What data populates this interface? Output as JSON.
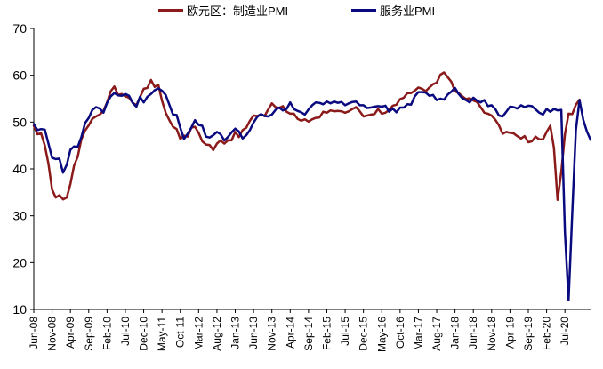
{
  "chart_data": {
    "type": "line",
    "title": "",
    "xlabel": "",
    "ylabel": "",
    "ylim": [
      10,
      70
    ],
    "yticks": [
      10,
      20,
      30,
      40,
      50,
      60,
      70
    ],
    "grid": false,
    "legend_position": "top",
    "x_start": "2008-06",
    "x_labels": [
      "Jun-08",
      "Nov-08",
      "Apr-09",
      "Sep-09",
      "Feb-10",
      "Jul-10",
      "Dec-10",
      "May-11",
      "Oct-11",
      "Mar-12",
      "Aug-12",
      "Jan-13",
      "Jun-13",
      "Nov-13",
      "Apr-14",
      "Sep-14",
      "Feb-15",
      "Jul-15",
      "Dec-15",
      "May-16",
      "Oct-16",
      "Mar-17",
      "Aug-17",
      "Jan-18",
      "Jun-18",
      "Nov-18",
      "Apr-19",
      "Sep-19",
      "Feb-20",
      "Jul-20"
    ],
    "series": [
      {
        "name": "欧元区：制造业PMI",
        "color": "#8B1A1A",
        "values": [
          49.2,
          47.4,
          47.6,
          45.0,
          41.1,
          35.6,
          33.9,
          34.4,
          33.5,
          33.9,
          36.8,
          40.7,
          42.6,
          46.3,
          48.2,
          49.3,
          50.7,
          51.2,
          51.6,
          52.4,
          54.2,
          56.6,
          57.6,
          55.8,
          56.0,
          55.5,
          55.2,
          54.1,
          53.6,
          55.3,
          57.1,
          57.3,
          59.0,
          57.5,
          58.0,
          54.6,
          52.0,
          50.4,
          49.0,
          48.5,
          46.4,
          47.1,
          46.9,
          48.8,
          49.0,
          47.7,
          45.9,
          45.2,
          45.1,
          44.0,
          45.4,
          46.1,
          45.4,
          46.1,
          46.1,
          47.9,
          46.8,
          48.3,
          48.8,
          50.3,
          51.4,
          51.3,
          51.6,
          51.3,
          52.7,
          54.0,
          53.2,
          53.0,
          53.4,
          52.2,
          51.8,
          51.8,
          50.7,
          50.3,
          50.6,
          50.1,
          50.6,
          50.9,
          51.0,
          52.2,
          52.0,
          52.5,
          52.3,
          52.4,
          52.3,
          52.0,
          52.3,
          52.8,
          53.2,
          52.3,
          51.2,
          51.4,
          51.6,
          51.7,
          52.8,
          51.8,
          52.0,
          52.6,
          53.5,
          53.7,
          54.9,
          55.2,
          56.2,
          56.2,
          56.7,
          57.4,
          57.1,
          56.6,
          57.4,
          58.1,
          58.4,
          60.1,
          60.6,
          59.6,
          58.6,
          56.6,
          56.2,
          55.5,
          54.9,
          55.1,
          54.6,
          54.3,
          53.2,
          52.0,
          51.8,
          51.4,
          50.5,
          49.3,
          47.5,
          47.9,
          47.7,
          47.6,
          47.0,
          46.5,
          47.0,
          45.7,
          45.9,
          46.9,
          46.3,
          46.3,
          47.9,
          49.2,
          44.5,
          33.4,
          39.4,
          47.4,
          51.8,
          51.7,
          53.7,
          54.8
        ]
      },
      {
        "name": "服务业PMI",
        "color": "#0A0A80",
        "values": [
          49.6,
          48.3,
          48.5,
          48.4,
          45.4,
          42.4,
          42.1,
          42.2,
          39.2,
          40.9,
          44.1,
          44.8,
          44.7,
          46.8,
          49.8,
          50.9,
          52.6,
          53.2,
          52.9,
          52.0,
          54.1,
          55.5,
          56.2,
          55.7,
          55.6,
          56.0,
          55.6,
          54.1,
          53.3,
          55.4,
          54.2,
          55.4,
          56.0,
          56.8,
          57.2,
          56.7,
          55.8,
          53.7,
          51.6,
          51.5,
          48.8,
          46.4,
          47.5,
          48.8,
          50.4,
          49.4,
          49.2,
          46.9,
          46.7,
          47.2,
          47.9,
          47.4,
          46.1,
          46.8,
          47.8,
          48.6,
          48.0,
          46.5,
          47.2,
          48.3,
          49.9,
          51.1,
          51.7,
          51.3,
          51.2,
          51.6,
          52.6,
          53.1,
          52.5,
          52.8,
          54.2,
          52.8,
          52.4,
          52.1,
          51.6,
          52.7,
          53.6,
          54.2,
          54.1,
          53.8,
          54.4,
          54.0,
          54.4,
          54.1,
          54.3,
          53.6,
          54.0,
          54.3,
          54.4,
          53.6,
          53.6,
          53.0,
          53.1,
          53.3,
          53.4,
          53.3,
          53.5,
          52.2,
          52.9,
          52.1,
          53.1,
          53.1,
          53.8,
          53.7,
          55.5,
          56.4,
          56.4,
          56.3,
          55.6,
          55.8,
          54.7,
          55.0,
          54.8,
          55.9,
          56.5,
          57.3,
          56.0,
          55.1,
          54.7,
          54.2,
          55.2,
          54.6,
          54.2,
          54.7,
          53.4,
          53.6,
          52.8,
          51.4,
          51.2,
          52.2,
          53.3,
          53.2,
          52.9,
          53.6,
          53.2,
          53.5,
          53.4,
          52.7,
          52.0,
          51.6,
          52.8,
          52.2,
          52.8,
          52.5,
          52.6,
          26.4,
          12.0,
          30.5,
          48.3,
          54.7,
          50.5,
          48.0,
          46.2
        ]
      }
    ]
  }
}
